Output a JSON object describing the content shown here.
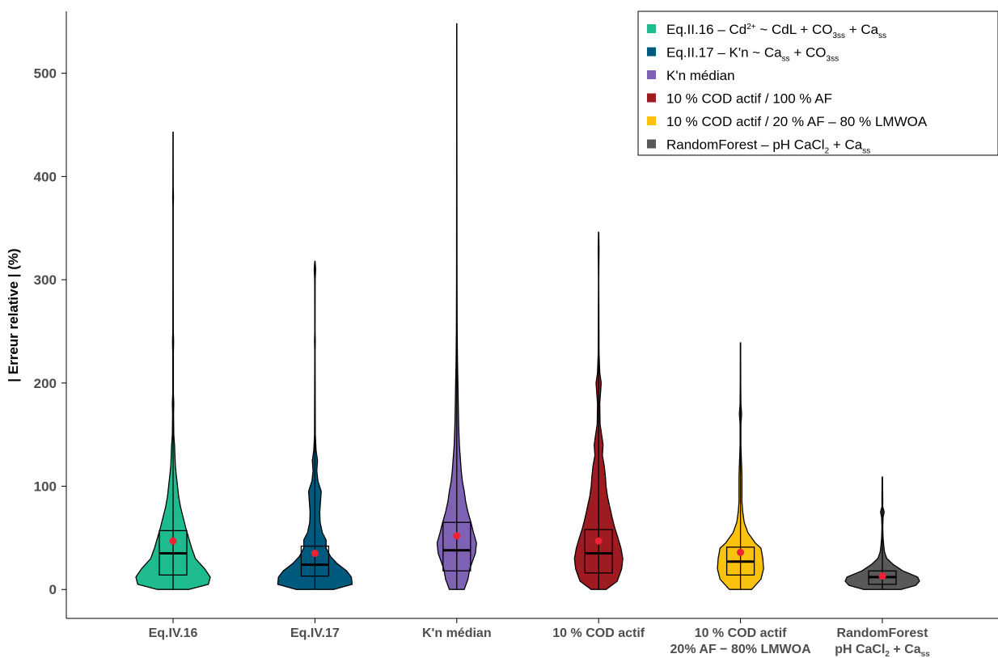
{
  "chart_data": {
    "type": "violin",
    "ylabel": "| Erreur relative | (%)",
    "ylim": [
      -28,
      560
    ],
    "yticks": [
      "0",
      "100",
      "200",
      "300",
      "400",
      "500"
    ],
    "grid": false,
    "legend_position": "top-right",
    "categories": [
      {
        "line1": "Eq.IV.16",
        "line2": ""
      },
      {
        "line1": "Eq.IV.17",
        "line2": ""
      },
      {
        "line1": "K'n médian",
        "line2": ""
      },
      {
        "line1": "10 % COD actif",
        "line2": ""
      },
      {
        "line1": "10 % COD actif",
        "line2": "20% AF − 80% LMWOA"
      },
      {
        "line1": "RandomForest",
        "line2": "pH CaCl",
        "line2_sub": "2",
        "line2_rest": " + Ca",
        "line2_sub2": "ss"
      }
    ],
    "legend": [
      {
        "parts": [
          [
            "Eq.II.16 – Cd",
            ""
          ],
          [
            "2+",
            "sup"
          ],
          [
            " ~ CdL + CO",
            ""
          ],
          [
            "3ss",
            "sub"
          ],
          [
            " + Ca",
            ""
          ],
          [
            "ss",
            "sub"
          ]
        ]
      },
      {
        "parts": [
          [
            "Eq.II.17 – K'n ~ Ca",
            ""
          ],
          [
            "ss",
            "sub"
          ],
          [
            " + CO",
            ""
          ],
          [
            "3ss",
            "sub"
          ]
        ]
      },
      {
        "parts": [
          [
            "K'n médian",
            ""
          ]
        ]
      },
      {
        "parts": [
          [
            "10 % COD actif / 100 % AF",
            ""
          ]
        ]
      },
      {
        "parts": [
          [
            "10 % COD actif / 20 % AF – 80 % LMWOA",
            ""
          ]
        ]
      },
      {
        "parts": [
          [
            "RandomForest – pH CaCl",
            ""
          ],
          [
            "2",
            "sub"
          ],
          [
            " + Ca",
            ""
          ],
          [
            "ss",
            "sub"
          ]
        ]
      }
    ],
    "series": [
      {
        "color": "#1dbb8e",
        "min": 0,
        "q1": 14,
        "median": 35,
        "q3": 57,
        "mean": 47,
        "max": 443,
        "density": [
          [
            0,
            0.42
          ],
          [
            5,
            0.95
          ],
          [
            12,
            1.0
          ],
          [
            20,
            0.85
          ],
          [
            30,
            0.6
          ],
          [
            40,
            0.5
          ],
          [
            50,
            0.42
          ],
          [
            60,
            0.34
          ],
          [
            70,
            0.27
          ],
          [
            80,
            0.2
          ],
          [
            90,
            0.15
          ],
          [
            100,
            0.12
          ],
          [
            110,
            0.09
          ],
          [
            120,
            0.06
          ],
          [
            130,
            0.05
          ],
          [
            140,
            0.04
          ],
          [
            150,
            0.02
          ],
          [
            170,
            0.012
          ],
          [
            180,
            0.02
          ],
          [
            190,
            0.008
          ],
          [
            230,
            0.008
          ],
          [
            240,
            0.015
          ],
          [
            250,
            0.006
          ],
          [
            300,
            0.004
          ],
          [
            370,
            0.004
          ],
          [
            380,
            0.01
          ],
          [
            390,
            0.004
          ],
          [
            443,
            0.003
          ]
        ]
      },
      {
        "color": "#005a7d",
        "min": 0,
        "q1": 13,
        "median": 24,
        "q3": 42,
        "mean": 35,
        "max": 318,
        "density": [
          [
            0,
            0.5
          ],
          [
            5,
            1.0
          ],
          [
            12,
            0.98
          ],
          [
            18,
            0.85
          ],
          [
            25,
            0.6
          ],
          [
            32,
            0.42
          ],
          [
            40,
            0.3
          ],
          [
            48,
            0.3
          ],
          [
            55,
            0.2
          ],
          [
            65,
            0.14
          ],
          [
            75,
            0.13
          ],
          [
            85,
            0.15
          ],
          [
            95,
            0.17
          ],
          [
            105,
            0.08
          ],
          [
            115,
            0.05
          ],
          [
            125,
            0.07
          ],
          [
            135,
            0.03
          ],
          [
            150,
            0.01
          ],
          [
            230,
            0.005
          ],
          [
            240,
            0.01
          ],
          [
            250,
            0.004
          ],
          [
            300,
            0.006
          ],
          [
            310,
            0.02
          ],
          [
            318,
            0.004
          ]
        ]
      },
      {
        "color": "#7f62b3",
        "min": 0,
        "q1": 18,
        "median": 38,
        "q3": 65,
        "mean": 52,
        "max": 548,
        "density": [
          [
            0,
            0.2
          ],
          [
            10,
            0.3
          ],
          [
            20,
            0.35
          ],
          [
            35,
            0.5
          ],
          [
            45,
            0.53
          ],
          [
            55,
            0.45
          ],
          [
            65,
            0.38
          ],
          [
            75,
            0.3
          ],
          [
            85,
            0.24
          ],
          [
            95,
            0.2
          ],
          [
            105,
            0.15
          ],
          [
            115,
            0.12
          ],
          [
            125,
            0.1
          ],
          [
            140,
            0.07
          ],
          [
            160,
            0.05
          ],
          [
            180,
            0.04
          ],
          [
            200,
            0.03
          ],
          [
            220,
            0.02
          ],
          [
            250,
            0.01
          ],
          [
            300,
            0.006
          ],
          [
            400,
            0.004
          ],
          [
            548,
            0.003
          ]
        ]
      },
      {
        "color": "#9e1b22",
        "min": 0,
        "q1": 16,
        "median": 35,
        "q3": 58,
        "mean": 47,
        "max": 346,
        "density": [
          [
            0,
            0.2
          ],
          [
            8,
            0.5
          ],
          [
            20,
            0.62
          ],
          [
            30,
            0.65
          ],
          [
            40,
            0.6
          ],
          [
            50,
            0.52
          ],
          [
            60,
            0.43
          ],
          [
            70,
            0.36
          ],
          [
            80,
            0.3
          ],
          [
            90,
            0.24
          ],
          [
            100,
            0.2
          ],
          [
            110,
            0.18
          ],
          [
            120,
            0.15
          ],
          [
            130,
            0.1
          ],
          [
            140,
            0.12
          ],
          [
            150,
            0.08
          ],
          [
            160,
            0.04
          ],
          [
            180,
            0.03
          ],
          [
            200,
            0.07
          ],
          [
            210,
            0.03
          ],
          [
            230,
            0.01
          ],
          [
            300,
            0.005
          ],
          [
            330,
            0.01
          ],
          [
            346,
            0.004
          ]
        ]
      },
      {
        "color": "#fac10f",
        "min": 0,
        "q1": 14,
        "median": 27,
        "q3": 41,
        "mean": 36,
        "max": 239,
        "density": [
          [
            0,
            0.3
          ],
          [
            10,
            0.55
          ],
          [
            20,
            0.62
          ],
          [
            30,
            0.6
          ],
          [
            40,
            0.55
          ],
          [
            45,
            0.4
          ],
          [
            55,
            0.2
          ],
          [
            65,
            0.1
          ],
          [
            75,
            0.06
          ],
          [
            85,
            0.04
          ],
          [
            100,
            0.04
          ],
          [
            110,
            0.04
          ],
          [
            120,
            0.03
          ],
          [
            130,
            0.02
          ],
          [
            140,
            0.01
          ],
          [
            150,
            0.01
          ],
          [
            160,
            0.01
          ],
          [
            170,
            0.03
          ],
          [
            180,
            0.01
          ],
          [
            200,
            0.006
          ],
          [
            239,
            0.004
          ]
        ]
      },
      {
        "color": "#595959",
        "min": 0,
        "q1": 5,
        "median": 12,
        "q3": 18,
        "mean": 13,
        "max": 109,
        "density": [
          [
            0,
            0.5
          ],
          [
            4,
            0.9
          ],
          [
            8,
            1.0
          ],
          [
            12,
            0.95
          ],
          [
            18,
            0.55
          ],
          [
            24,
            0.3
          ],
          [
            30,
            0.12
          ],
          [
            36,
            0.06
          ],
          [
            42,
            0.04
          ],
          [
            50,
            0.02
          ],
          [
            60,
            0.01
          ],
          [
            70,
            0.02
          ],
          [
            75,
            0.05
          ],
          [
            80,
            0.01
          ],
          [
            90,
            0.01
          ],
          [
            109,
            0.005
          ]
        ]
      }
    ]
  }
}
